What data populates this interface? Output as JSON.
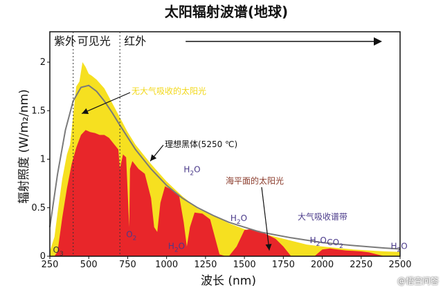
{
  "chart_data": {
    "type": "area",
    "title": "太阳辐射波谱(地球)",
    "xlabel": "波长 (nm)",
    "ylabel": "辐射照度 (W/m₂/nm)",
    "xlim": [
      250,
      2500
    ],
    "ylim": [
      0,
      2.0
    ],
    "x_ticks": [
      250,
      500,
      750,
      1000,
      1250,
      1500,
      1750,
      2000,
      2250,
      2500
    ],
    "y_ticks": [
      0,
      0.5,
      1,
      1.5,
      2
    ],
    "grid": false,
    "series": [
      {
        "name": "无大气吸收的太阳光",
        "color": "#f6e020",
        "x": [
          250,
          280,
          300,
          330,
          360,
          380,
          400,
          420,
          440,
          460,
          480,
          500,
          520,
          550,
          600,
          650,
          700,
          750,
          800,
          850,
          900,
          1000,
          1100,
          1200,
          1300,
          1400,
          1500,
          1600,
          1700,
          1800,
          1900,
          2000,
          2100,
          2200,
          2300,
          2400,
          2500
        ],
        "values": [
          0.05,
          0.2,
          0.45,
          0.8,
          1.05,
          1.15,
          1.45,
          1.75,
          1.8,
          2.0,
          1.95,
          1.88,
          1.86,
          1.82,
          1.73,
          1.58,
          1.43,
          1.28,
          1.15,
          1.05,
          0.95,
          0.77,
          0.62,
          0.49,
          0.42,
          0.34,
          0.28,
          0.24,
          0.2,
          0.16,
          0.12,
          0.1,
          0.085,
          0.07,
          0.06,
          0.05,
          0.045
        ]
      },
      {
        "name": "海平面的太阳光",
        "color": "#e8262a",
        "x": [
          280,
          300,
          330,
          360,
          390,
          420,
          450,
          480,
          510,
          540,
          570,
          600,
          630,
          660,
          690,
          700,
          720,
          740,
          760,
          765,
          780,
          820,
          860,
          900,
          920,
          940,
          960,
          990,
          1040,
          1080,
          1110,
          1130,
          1150,
          1180,
          1230,
          1280,
          1340,
          1380,
          1400,
          1450,
          1500,
          1540,
          1600,
          1650,
          1700,
          1750,
          1800,
          1850,
          1900,
          1950,
          2000,
          2050,
          2100,
          2150,
          2200,
          2250,
          2300,
          2350,
          2400,
          2450,
          2500
        ],
        "values": [
          0,
          0.05,
          0.4,
          0.7,
          0.95,
          1.12,
          1.25,
          1.3,
          1.28,
          1.27,
          1.25,
          1.25,
          1.22,
          1.16,
          1.1,
          0.9,
          1.05,
          1.02,
          0.3,
          0.9,
          0.98,
          0.9,
          0.85,
          0.6,
          0.3,
          0.25,
          0.55,
          0.72,
          0.68,
          0.63,
          0.35,
          0.1,
          0.3,
          0.45,
          0.44,
          0.38,
          0.02,
          0.0,
          0.0,
          0.1,
          0.27,
          0.28,
          0.26,
          0.22,
          0.18,
          0.1,
          0.0,
          0.0,
          0.0,
          0.0,
          0.07,
          0.08,
          0.07,
          0.06,
          0.055,
          0.05,
          0.04,
          0.02,
          0.0,
          0.0,
          0.0
        ]
      },
      {
        "name": "理想黑体(5250 ℃)",
        "color": "#7a7a7a",
        "x": [
          250,
          300,
          350,
          400,
          450,
          500,
          550,
          600,
          650,
          700,
          800,
          900,
          1000,
          1100,
          1200,
          1300,
          1400,
          1500,
          1600,
          1700,
          1800,
          2000,
          2200,
          2400,
          2500
        ],
        "values": [
          0.3,
          0.85,
          1.3,
          1.6,
          1.74,
          1.76,
          1.7,
          1.6,
          1.48,
          1.35,
          1.1,
          0.9,
          0.73,
          0.6,
          0.5,
          0.42,
          0.35,
          0.3,
          0.25,
          0.22,
          0.19,
          0.14,
          0.11,
          0.085,
          0.075
        ]
      }
    ],
    "regions": [
      {
        "label": "紫外",
        "x_start": 250,
        "x_end": 400
      },
      {
        "label": "可见光",
        "x_start": 400,
        "x_end": 700
      },
      {
        "label": "红外",
        "x_start": 700,
        "x_end": 2500
      }
    ],
    "region_dividers": [
      400,
      700
    ],
    "annotations": [
      {
        "text": "O",
        "sub": "3",
        "x": 270,
        "y": 0.02,
        "color": "#333333"
      },
      {
        "text": "O",
        "sub": "2",
        "x": 740,
        "y": 0.18,
        "color": "#4a3a8a"
      },
      {
        "text": "H",
        "sub": "2",
        "tail": "O",
        "x": 1010,
        "y": 0.06,
        "color": "#4a3a8a"
      },
      {
        "text": "H",
        "sub": "2",
        "tail": "O",
        "x": 1110,
        "y": 0.85,
        "color": "#4a3a8a"
      },
      {
        "text": "H",
        "sub": "2",
        "tail": "O",
        "x": 1410,
        "y": 0.35,
        "color": "#4a3a8a"
      },
      {
        "text": "H",
        "sub": "2",
        "tail": "O",
        "x": 1920,
        "y": 0.12,
        "color": "#4a3a8a"
      },
      {
        "text": "CO",
        "sub": "2",
        "x": 2030,
        "y": 0.1,
        "color": "#4a3a8a"
      },
      {
        "text": "H",
        "sub": "2",
        "tail": "O",
        "x": 2440,
        "y": 0.06,
        "color": "#4a3a8a"
      }
    ],
    "label_texts": {
      "extraterrestrial": "无大气吸收的太阳光",
      "blackbody": "理想黑体(5250 ℃)",
      "sea_level": "海平面的太阳光",
      "absorption": "大气吸收谱带"
    }
  },
  "watermark": "@悟空问答"
}
